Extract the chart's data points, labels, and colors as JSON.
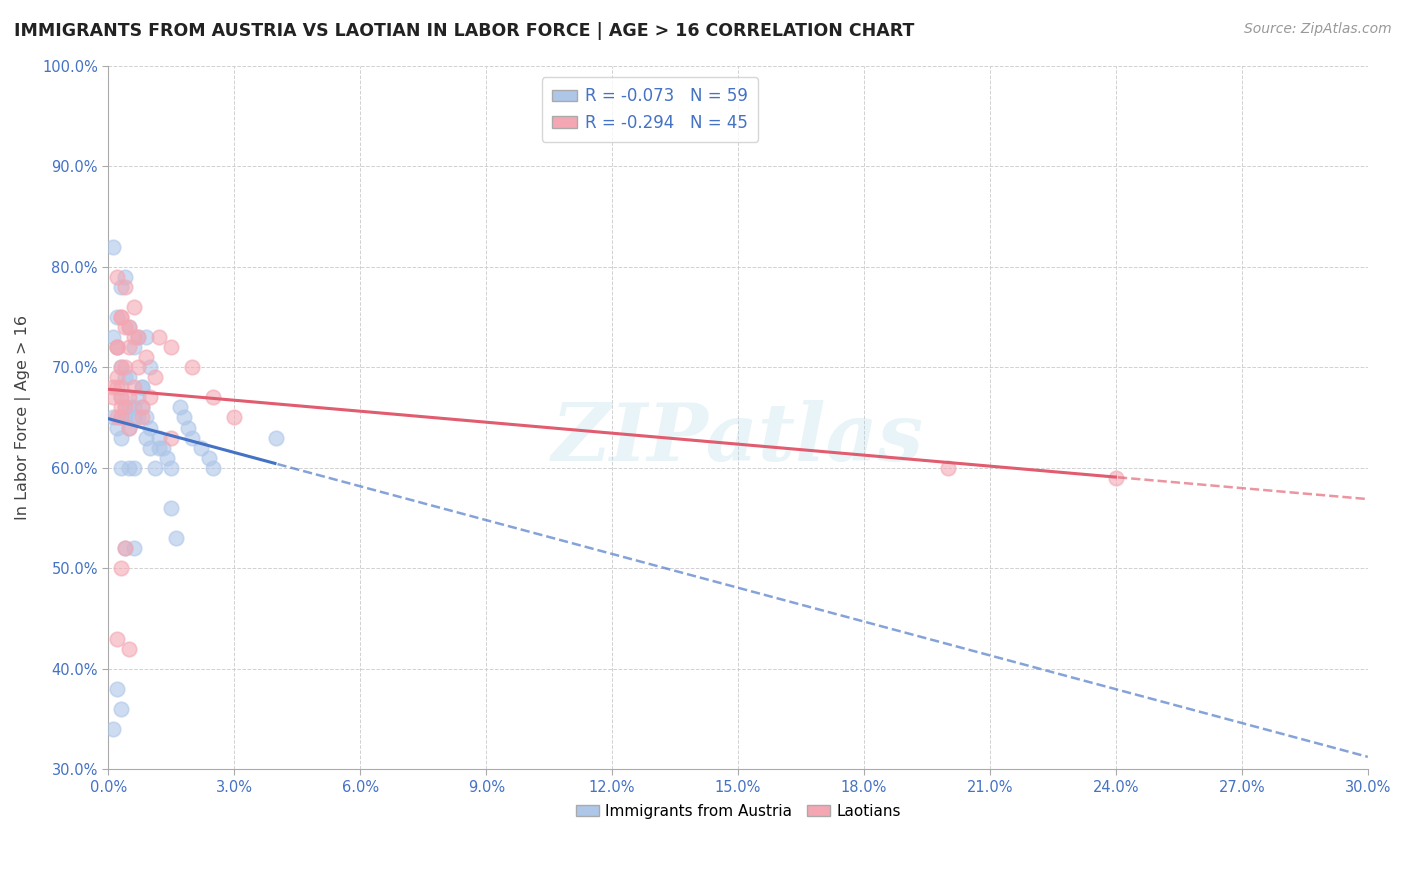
{
  "title": "IMMIGRANTS FROM AUSTRIA VS LAOTIAN IN LABOR FORCE | AGE > 16 CORRELATION CHART",
  "source": "Source: ZipAtlas.com",
  "ylabel": "In Labor Force | Age > 16",
  "xmin": 0.0,
  "xmax": 0.3,
  "ymin": 0.3,
  "ymax": 1.0,
  "legend_austria": "Immigrants from Austria",
  "legend_laotian": "Laotians",
  "R_austria": -0.073,
  "N_austria": 59,
  "R_laotian": -0.294,
  "N_laotian": 45,
  "color_austria": "#aec6e8",
  "color_laotian": "#f4a7b3",
  "color_austria_line": "#4472c4",
  "color_laotian_line": "#e05c6e",
  "watermark_text": "ZIPatlas",
  "background_color": "#ffffff",
  "grid_color": "#cccccc",
  "ytick_vals": [
    0.3,
    0.4,
    0.5,
    0.6,
    0.7,
    0.8,
    0.9,
    1.0
  ],
  "xtick_vals": [
    0.0,
    0.03,
    0.06,
    0.09,
    0.12,
    0.15,
    0.18,
    0.21,
    0.24,
    0.27,
    0.3
  ],
  "austria_x": [
    0.001,
    0.002,
    0.003,
    0.003,
    0.004,
    0.004,
    0.005,
    0.005,
    0.006,
    0.006,
    0.007,
    0.007,
    0.008,
    0.008,
    0.009,
    0.009,
    0.01,
    0.01,
    0.011,
    0.012,
    0.013,
    0.014,
    0.015,
    0.016,
    0.017,
    0.018,
    0.019,
    0.02,
    0.022,
    0.024,
    0.025,
    0.003,
    0.004,
    0.005,
    0.006,
    0.007,
    0.003,
    0.004,
    0.005,
    0.006,
    0.008,
    0.009,
    0.01,
    0.012,
    0.015,
    0.003,
    0.004,
    0.001,
    0.002,
    0.003,
    0.04,
    0.004,
    0.005,
    0.006,
    0.003,
    0.001,
    0.002,
    0.001,
    0.002
  ],
  "austria_y": [
    0.65,
    0.64,
    0.63,
    0.65,
    0.66,
    0.65,
    0.66,
    0.64,
    0.65,
    0.66,
    0.65,
    0.67,
    0.66,
    0.68,
    0.65,
    0.63,
    0.64,
    0.62,
    0.6,
    0.62,
    0.62,
    0.61,
    0.56,
    0.53,
    0.66,
    0.65,
    0.64,
    0.63,
    0.62,
    0.61,
    0.6,
    0.78,
    0.79,
    0.74,
    0.72,
    0.73,
    0.7,
    0.69,
    0.6,
    0.52,
    0.68,
    0.73,
    0.7,
    0.63,
    0.6,
    0.67,
    0.52,
    0.73,
    0.72,
    0.6,
    0.63,
    0.65,
    0.69,
    0.6,
    0.36,
    0.34,
    0.38,
    0.82,
    0.75
  ],
  "laotian_x": [
    0.001,
    0.002,
    0.002,
    0.003,
    0.003,
    0.004,
    0.005,
    0.006,
    0.008,
    0.01,
    0.012,
    0.015,
    0.02,
    0.025,
    0.03,
    0.003,
    0.005,
    0.007,
    0.009,
    0.011,
    0.002,
    0.004,
    0.006,
    0.001,
    0.002,
    0.003,
    0.008,
    0.015,
    0.002,
    0.004,
    0.006,
    0.003,
    0.005,
    0.2,
    0.24,
    0.004,
    0.003,
    0.002,
    0.005,
    0.007,
    0.003,
    0.004,
    0.002,
    0.003,
    0.005
  ],
  "laotian_y": [
    0.67,
    0.65,
    0.68,
    0.67,
    0.66,
    0.7,
    0.72,
    0.68,
    0.65,
    0.67,
    0.73,
    0.72,
    0.7,
    0.67,
    0.65,
    0.75,
    0.74,
    0.73,
    0.71,
    0.69,
    0.79,
    0.78,
    0.76,
    0.68,
    0.69,
    0.7,
    0.66,
    0.63,
    0.72,
    0.74,
    0.73,
    0.65,
    0.64,
    0.6,
    0.59,
    0.52,
    0.5,
    0.43,
    0.42,
    0.7,
    0.68,
    0.66,
    0.72,
    0.75,
    0.67
  ]
}
